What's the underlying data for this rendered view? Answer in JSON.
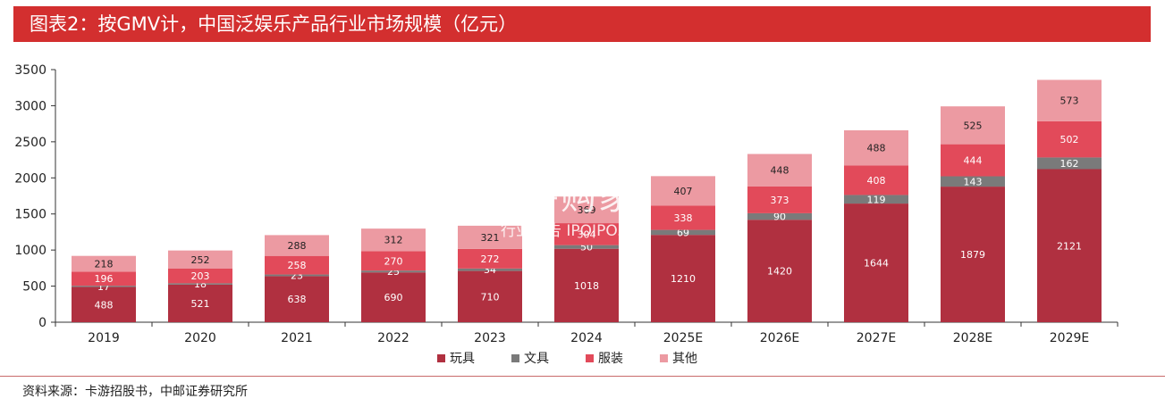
{
  "title": "图表2：按GMV计，中国泛娱乐产品行业市场规模（亿元）",
  "source": "资料来源：卡游招股书，中邮证券研究所",
  "watermark": {
    "main": "加并购家",
    "sub": "行业报告 IPOIPO.CN"
  },
  "colors": {
    "title_bg": "#d32f2f",
    "玩具": "#b03040",
    "文具": "#7a7a7a",
    "服装": "#e24a5a",
    "其他": "#ec9aa2"
  },
  "chart_data": {
    "type": "bar",
    "stacked": true,
    "categories": [
      "2019",
      "2020",
      "2021",
      "2022",
      "2023",
      "2024",
      "2025E",
      "2026E",
      "2027E",
      "2028E",
      "2029E"
    ],
    "series": [
      {
        "name": "玩具",
        "values": [
          488,
          521,
          638,
          690,
          710,
          1018,
          1210,
          1420,
          1644,
          1879,
          2121
        ]
      },
      {
        "name": "文具",
        "values": [
          17,
          18,
          23,
          25,
          34,
          50,
          69,
          90,
          119,
          143,
          162
        ]
      },
      {
        "name": "服装",
        "values": [
          196,
          203,
          258,
          270,
          272,
          304,
          338,
          373,
          408,
          444,
          502
        ]
      },
      {
        "name": "其他",
        "values": [
          218,
          252,
          288,
          312,
          321,
          369,
          407,
          448,
          488,
          525,
          573
        ]
      }
    ],
    "ylim": [
      0,
      3500
    ],
    "yticks": [
      "0",
      "500",
      "1000",
      "1500",
      "2000",
      "2500",
      "3000",
      "3500"
    ],
    "grid": false,
    "legend": "bottom"
  }
}
